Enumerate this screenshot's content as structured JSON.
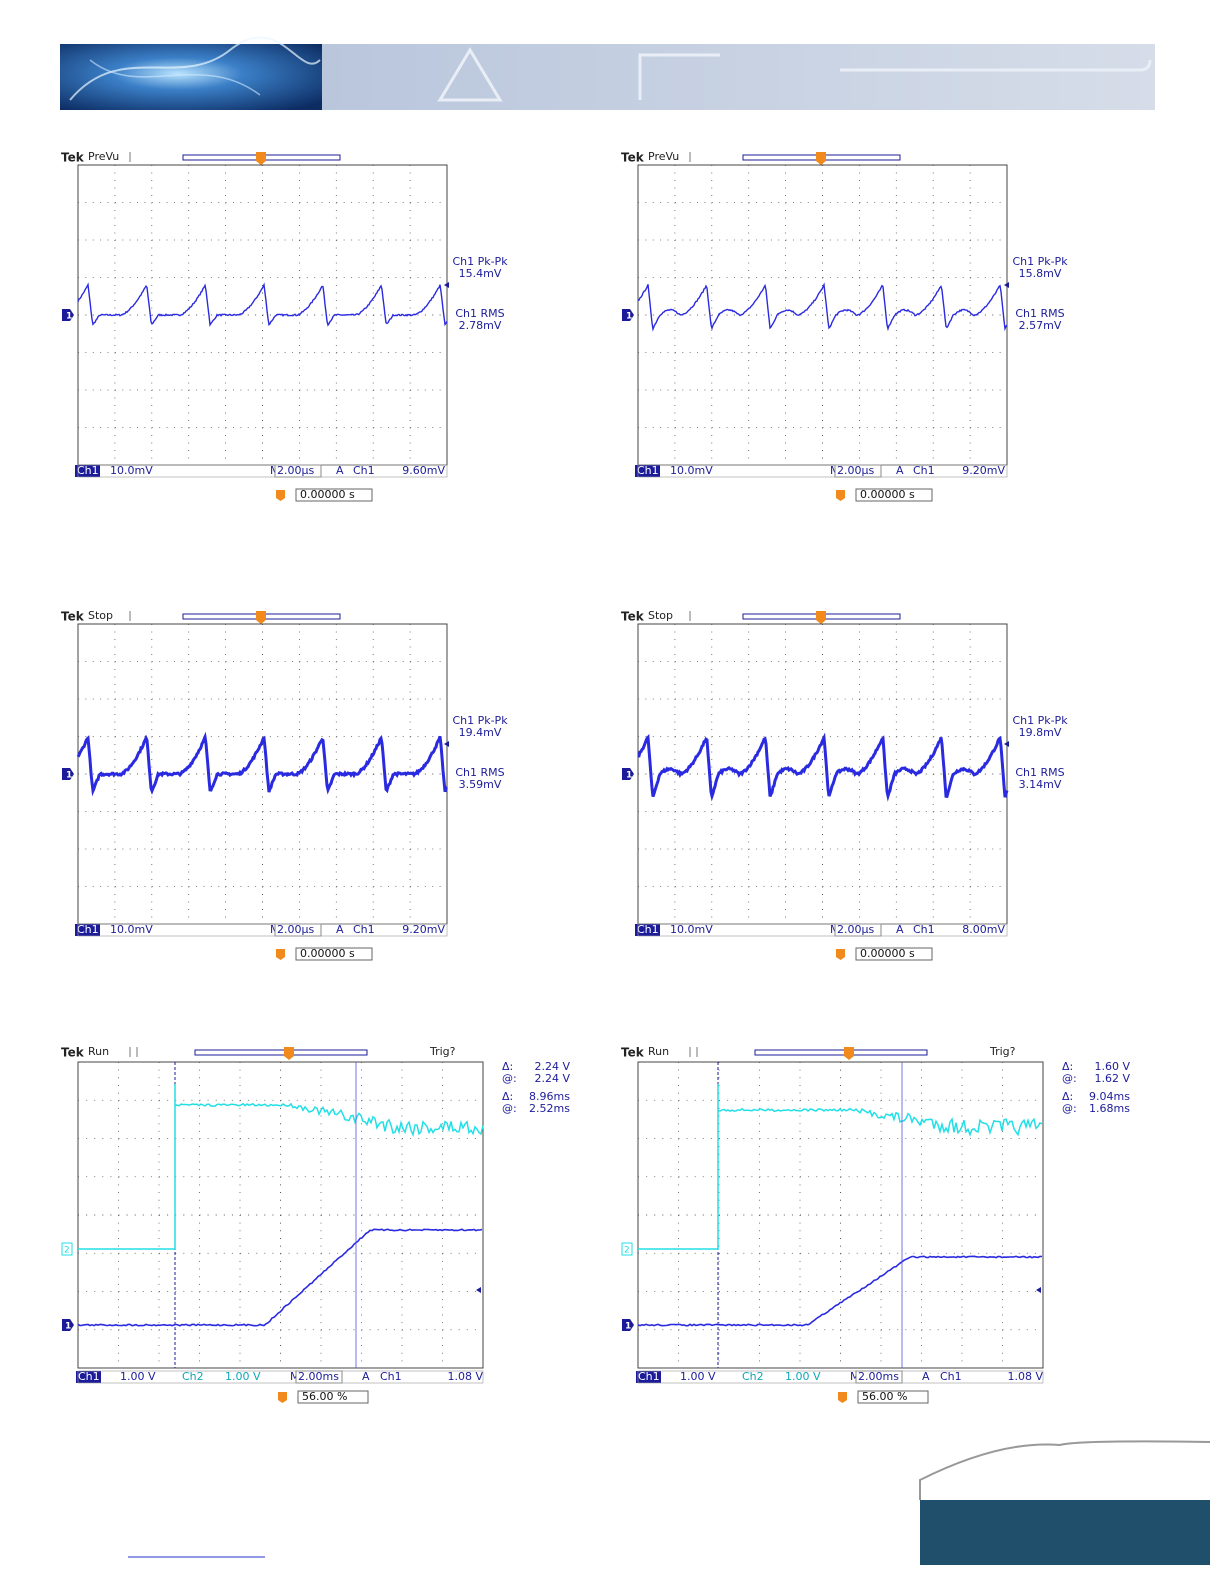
{
  "scopes": [
    {
      "brand": "Tek",
      "status": "PreVu",
      "channel_markers": [
        "1"
      ],
      "measurements": [
        "Ch1 Pk-Pk",
        "15.4mV",
        "Ch1 RMS",
        "2.78mV"
      ],
      "readout": [
        "Ch1",
        "10.0mV",
        "M",
        "2.00µs",
        "A",
        "Ch1",
        "9.60mV"
      ],
      "trigger_position": "0.00000 s"
    },
    {
      "brand": "Tek",
      "status": "PreVu",
      "channel_markers": [
        "1"
      ],
      "measurements": [
        "Ch1 Pk-Pk",
        "15.8mV",
        "Ch1 RMS",
        "2.57mV"
      ],
      "readout": [
        "Ch1",
        "10.0mV",
        "M",
        "2.00µs",
        "A",
        "Ch1",
        "9.20mV"
      ],
      "trigger_position": "0.00000 s"
    },
    {
      "brand": "Tek",
      "status": "Stop",
      "channel_markers": [
        "1"
      ],
      "measurements": [
        "Ch1 Pk-Pk",
        "19.4mV",
        "Ch1 RMS",
        "3.59mV"
      ],
      "readout": [
        "Ch1",
        "10.0mV",
        "M",
        "2.00µs",
        "A",
        "Ch1",
        "9.20mV"
      ],
      "trigger_position": "0.00000 s"
    },
    {
      "brand": "Tek",
      "status": "Stop",
      "channel_markers": [
        "1"
      ],
      "measurements": [
        "Ch1 Pk-Pk",
        "19.8mV",
        "Ch1 RMS",
        "3.14mV"
      ],
      "readout": [
        "Ch1",
        "10.0mV",
        "M",
        "2.00µs",
        "A",
        "Ch1",
        "8.00mV"
      ],
      "trigger_position": "0.00000 s"
    },
    {
      "brand": "Tek",
      "status": "Run",
      "trigger_state": "Trig?",
      "channel_markers": [
        "2",
        "1"
      ],
      "measurements": [
        "Δ:",
        "2.24 V",
        "@:",
        "2.24 V",
        "Δ:",
        "8.96ms",
        "@:",
        "2.52ms"
      ],
      "readout": [
        "Ch1",
        "1.00 V",
        "Ch2",
        "1.00 V",
        "M",
        "2.00ms",
        "A",
        "Ch1",
        "1.08 V"
      ],
      "trigger_position": "56.00 %"
    },
    {
      "brand": "Tek",
      "status": "Run",
      "trigger_state": "Trig?",
      "channel_markers": [
        "2",
        "1"
      ],
      "measurements": [
        "Δ:",
        "1.60 V",
        "@:",
        "1.62 V",
        "Δ:",
        "9.04ms",
        "@:",
        "1.68ms"
      ],
      "readout": [
        "Ch1",
        "1.00 V",
        "Ch2",
        "1.00 V",
        "M",
        "2.00ms",
        "A",
        "Ch1",
        "1.08 V"
      ],
      "trigger_position": "56.00 %"
    }
  ]
}
